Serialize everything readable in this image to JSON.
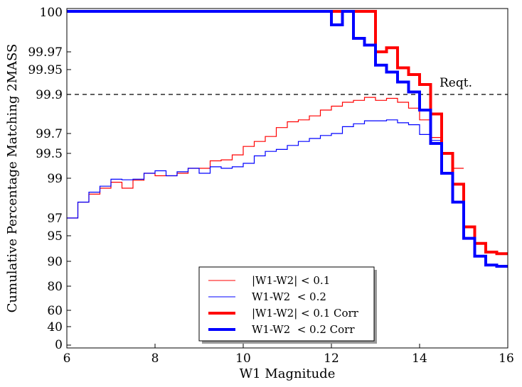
{
  "chart_data": {
    "type": "line",
    "step": true,
    "xlabel": "W1 Magnitude",
    "ylabel": "Cumulative Percentage Matching 2MASS",
    "xlim": [
      6,
      16
    ],
    "y_scale": "nonlinear (tick labels unevenly spaced)",
    "x_ticks": [
      "6",
      "8",
      "10",
      "12",
      "14",
      "16"
    ],
    "y_ticks": [
      "0",
      "40",
      "60",
      "80",
      "90",
      "95",
      "97",
      "99",
      "99.5",
      "99.7",
      "99.9",
      "99.95",
      "99.97",
      "100"
    ],
    "reference_line": {
      "label": "Reqt.",
      "y": 99.9,
      "style": "dashed"
    },
    "legend": {
      "position": "lower-center"
    },
    "x": [
      6.0,
      6.25,
      6.5,
      6.75,
      7.0,
      7.25,
      7.5,
      7.75,
      8.0,
      8.25,
      8.5,
      8.75,
      9.0,
      9.25,
      9.5,
      9.75,
      10.0,
      10.25,
      10.5,
      10.75,
      11.0,
      11.25,
      11.5,
      11.75,
      12.0,
      12.25,
      12.5,
      12.75,
      13.0,
      13.25,
      13.5,
      13.75,
      14.0,
      14.25,
      14.5,
      14.75,
      15.0,
      15.25,
      15.5,
      15.75
    ],
    "series": [
      {
        "name": "|W1-W2| < 0.1",
        "color": "#ff0000",
        "line_width": "thin",
        "values": [
          97.0,
          97.8,
          98.2,
          98.5,
          98.8,
          98.5,
          98.9,
          99.1,
          99.05,
          99.05,
          99.1,
          99.2,
          99.2,
          99.35,
          99.37,
          99.47,
          99.57,
          99.62,
          99.67,
          99.73,
          99.76,
          99.77,
          99.79,
          99.82,
          99.84,
          99.86,
          99.87,
          99.885,
          99.87,
          99.88,
          99.86,
          99.83,
          99.77,
          99.66,
          99.49,
          99.2,
          null,
          null,
          null,
          null
        ]
      },
      {
        "name": "W1-W2  < 0.2",
        "color": "#0000ff",
        "line_width": "thin",
        "values": [
          97.0,
          97.8,
          98.3,
          98.6,
          98.95,
          98.92,
          98.95,
          99.1,
          99.15,
          99.05,
          99.13,
          99.2,
          99.1,
          99.23,
          99.2,
          99.23,
          99.3,
          99.45,
          99.52,
          99.54,
          99.58,
          99.62,
          99.65,
          99.68,
          99.7,
          99.735,
          99.75,
          99.765,
          99.765,
          99.77,
          99.755,
          99.745,
          99.69,
          99.63,
          null,
          null,
          null,
          null,
          null,
          null
        ]
      },
      {
        "name": "|W1-W2| < 0.1 Corr",
        "color": "#ff0000",
        "line_width": "thick",
        "values": [
          100,
          100,
          100,
          100,
          100,
          100,
          100,
          100,
          100,
          100,
          100,
          100,
          100,
          100,
          100,
          100,
          100,
          100,
          100,
          100,
          100,
          100,
          100,
          100,
          100,
          100,
          100,
          100,
          99.97,
          99.973,
          99.952,
          99.94,
          99.92,
          99.8,
          99.5,
          98.7,
          96.0,
          93.5,
          91.8,
          91.5
        ]
      },
      {
        "name": "W1-W2  < 0.2 Corr",
        "color": "#0000ff",
        "line_width": "thick",
        "values": [
          100,
          100,
          100,
          100,
          100,
          100,
          100,
          100,
          100,
          100,
          100,
          100,
          100,
          100,
          100,
          100,
          100,
          100,
          100,
          100,
          100,
          100,
          100,
          100,
          99.99,
          100,
          99.98,
          99.975,
          99.955,
          99.945,
          99.925,
          99.905,
          99.82,
          99.6,
          99.1,
          97.8,
          94.5,
          91.0,
          88.5,
          88.0
        ]
      }
    ]
  }
}
